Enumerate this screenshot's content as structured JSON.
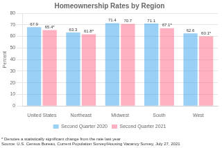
{
  "chart_data": {
    "type": "bar",
    "title": "Homeownership Rates by Region",
    "ylabel": "Percent",
    "categories": [
      "United States",
      "Northeast",
      "Midwest",
      "South",
      "West"
    ],
    "series": [
      {
        "name": "Second Quarter 2020",
        "values": [
          67.9,
          63.3,
          71.4,
          71.1,
          62.6
        ]
      },
      {
        "name": "Second Quarter 2021",
        "values": [
          65.4,
          61.8,
          70.7,
          67.1,
          60.1
        ],
        "value_labels": [
          "65.4*",
          "61.8*",
          "70.7",
          "67.1*",
          "60.1*"
        ]
      }
    ],
    "ylim": [
      0,
      80
    ],
    "yticks": [
      0,
      10,
      20,
      30,
      40,
      50,
      60,
      70,
      80
    ],
    "grid": true,
    "legend": "bottom",
    "data_labels": true,
    "annotations": [
      "* Denotes a statistically significant change from the rate last year",
      "Source: U.S. Census Bureau, Current Population Survey/Housing Vacancy Survey, July 27, 2021"
    ]
  }
}
